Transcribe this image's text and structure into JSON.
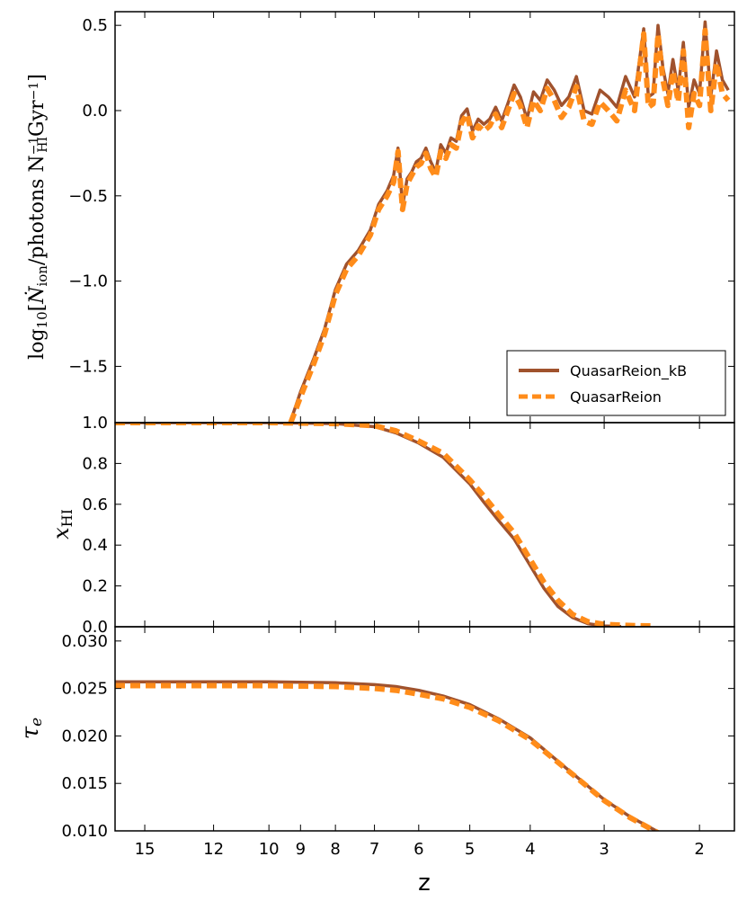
{
  "chart_data": [
    {
      "type": "line",
      "panel": "ionizing-photon-rate",
      "ylabel": "log10[Ṅion/photons NHI⁻¹ Gyr⁻¹]",
      "ylabel_parts": {
        "log": "log",
        "log_sub": "10",
        "open": "[",
        "N": "Ṅ",
        "N_sub": "ion",
        "mid": "/photons N",
        "N2_sup": "−1",
        "N2_sub": "HI",
        "gyr": "Gyr",
        "gyr_sup": "−1",
        "close": "]"
      },
      "ylim": [
        -1.83,
        0.58
      ],
      "yticks": [
        "−1.5",
        "−1.0",
        "−0.5",
        "0.0",
        "0.5"
      ],
      "ytick_values": [
        -1.5,
        -1.0,
        -0.5,
        0.0,
        0.5
      ],
      "legend": [
        "QuasarReion_kB",
        "QuasarReion"
      ],
      "series": [
        {
          "name": "QuasarReion_kB",
          "color": "#a0522d",
          "dash": "solid",
          "x": [
            9.3,
            9.0,
            8.6,
            8.3,
            8.0,
            7.7,
            7.4,
            7.1,
            6.9,
            6.7,
            6.55,
            6.45,
            6.35,
            6.25,
            6.15,
            6.05,
            5.95,
            5.85,
            5.75,
            5.65,
            5.55,
            5.45,
            5.35,
            5.25,
            5.15,
            5.05,
            4.95,
            4.85,
            4.75,
            4.65,
            4.55,
            4.45,
            4.35,
            4.25,
            4.15,
            4.05,
            3.95,
            3.85,
            3.75,
            3.65,
            3.55,
            3.45,
            3.35,
            3.25,
            3.15,
            3.05,
            2.95,
            2.85,
            2.75,
            2.65,
            2.55,
            2.5,
            2.45,
            2.4,
            2.35,
            2.3,
            2.25,
            2.2,
            2.15,
            2.1,
            2.05,
            2.0,
            1.95,
            1.9,
            1.85,
            1.8,
            1.75
          ],
          "y": [
            -1.82,
            -1.65,
            -1.45,
            -1.28,
            -1.05,
            -0.9,
            -0.82,
            -0.7,
            -0.55,
            -0.47,
            -0.38,
            -0.22,
            -0.56,
            -0.4,
            -0.36,
            -0.3,
            -0.28,
            -0.22,
            -0.3,
            -0.36,
            -0.2,
            -0.25,
            -0.16,
            -0.18,
            -0.03,
            0.01,
            -0.12,
            -0.05,
            -0.08,
            -0.05,
            0.02,
            -0.06,
            0.04,
            0.15,
            0.08,
            -0.05,
            0.11,
            0.06,
            0.18,
            0.12,
            0.03,
            0.08,
            0.2,
            0.0,
            -0.02,
            0.12,
            0.08,
            0.02,
            0.2,
            0.08,
            0.48,
            0.08,
            0.1,
            0.5,
            0.25,
            0.1,
            0.3,
            0.12,
            0.4,
            0.02,
            0.18,
            0.1,
            0.52,
            0.08,
            0.35,
            0.18,
            0.12
          ]
        },
        {
          "name": "QuasarReion",
          "color": "#ff8c1a",
          "dash": "dashed",
          "x": [
            9.3,
            9.0,
            8.6,
            8.3,
            8.0,
            7.7,
            7.4,
            7.1,
            6.9,
            6.7,
            6.55,
            6.45,
            6.35,
            6.25,
            6.15,
            6.05,
            5.95,
            5.85,
            5.75,
            5.65,
            5.55,
            5.45,
            5.35,
            5.25,
            5.15,
            5.05,
            4.95,
            4.85,
            4.75,
            4.65,
            4.55,
            4.45,
            4.35,
            4.25,
            4.15,
            4.05,
            3.95,
            3.85,
            3.75,
            3.65,
            3.55,
            3.45,
            3.35,
            3.25,
            3.15,
            3.05,
            2.95,
            2.85,
            2.75,
            2.65,
            2.55,
            2.5,
            2.45,
            2.4,
            2.35,
            2.3,
            2.25,
            2.2,
            2.15,
            2.1,
            2.05,
            2.0,
            1.95,
            1.9,
            1.85,
            1.8,
            1.75
          ],
          "y": [
            -1.83,
            -1.68,
            -1.48,
            -1.31,
            -1.08,
            -0.93,
            -0.85,
            -0.73,
            -0.58,
            -0.5,
            -0.42,
            -0.24,
            -0.58,
            -0.43,
            -0.38,
            -0.33,
            -0.31,
            -0.25,
            -0.34,
            -0.39,
            -0.24,
            -0.28,
            -0.2,
            -0.22,
            -0.07,
            -0.02,
            -0.16,
            -0.09,
            -0.12,
            -0.09,
            -0.02,
            -0.1,
            0.0,
            0.1,
            0.03,
            -0.1,
            0.06,
            0.0,
            0.13,
            0.06,
            -0.04,
            0.02,
            0.14,
            -0.06,
            -0.08,
            0.05,
            0.0,
            -0.06,
            0.12,
            0.0,
            0.45,
            0.02,
            0.04,
            0.45,
            0.18,
            0.03,
            0.23,
            0.05,
            0.35,
            -0.1,
            0.1,
            0.03,
            0.47,
            0.0,
            0.28,
            0.1,
            0.06
          ]
        }
      ]
    },
    {
      "type": "line",
      "panel": "neutral-fraction",
      "ylabel": "xHI",
      "ylabel_parts": {
        "main": "x",
        "sub": "HI"
      },
      "ylim": [
        0.0,
        1.0
      ],
      "yticks": [
        "0.0",
        "0.2",
        "0.4",
        "0.6",
        "0.8",
        "1.0"
      ],
      "ytick_values": [
        0.0,
        0.2,
        0.4,
        0.6,
        0.8,
        1.0
      ],
      "series": [
        {
          "name": "QuasarReion_kB",
          "color": "#a0522d",
          "dash": "solid",
          "x": [
            16.5,
            10.0,
            8.0,
            7.0,
            6.5,
            6.0,
            5.5,
            5.0,
            4.75,
            4.5,
            4.25,
            4.0,
            3.8,
            3.6,
            3.4,
            3.2,
            3.0,
            2.8
          ],
          "y": [
            1.0,
            1.0,
            0.995,
            0.98,
            0.95,
            0.9,
            0.83,
            0.7,
            0.61,
            0.52,
            0.43,
            0.3,
            0.19,
            0.1,
            0.045,
            0.015,
            0.004,
            0.001
          ]
        },
        {
          "name": "QuasarReion",
          "color": "#ff8c1a",
          "dash": "dashed",
          "x": [
            16.5,
            10.0,
            8.0,
            7.0,
            6.5,
            6.0,
            5.5,
            5.0,
            4.75,
            4.5,
            4.25,
            4.0,
            3.8,
            3.6,
            3.4,
            3.2,
            3.0,
            2.8,
            2.6,
            2.45
          ],
          "y": [
            1.0,
            1.0,
            0.995,
            0.985,
            0.96,
            0.91,
            0.85,
            0.72,
            0.64,
            0.55,
            0.46,
            0.33,
            0.22,
            0.13,
            0.06,
            0.025,
            0.012,
            0.008,
            0.005,
            0.004
          ]
        }
      ]
    },
    {
      "type": "line",
      "panel": "optical-depth",
      "ylabel": "τe",
      "ylabel_parts": {
        "main": "τ",
        "sub": "e"
      },
      "xlabel": "z",
      "ylim": [
        0.01,
        0.0315
      ],
      "yticks": [
        "0.010",
        "0.015",
        "0.020",
        "0.025",
        "0.030"
      ],
      "ytick_values": [
        0.01,
        0.015,
        0.02,
        0.025,
        0.03
      ],
      "xticks": [
        "15",
        "12",
        "10",
        "9",
        "8",
        "7",
        "6",
        "5",
        "4",
        "3",
        "2"
      ],
      "xtick_values": [
        15,
        12,
        10,
        9,
        8,
        7,
        6,
        5,
        4,
        3,
        2
      ],
      "xlim": [
        16.5,
        1.7
      ],
      "xscale": "log(1+z)",
      "series": [
        {
          "name": "QuasarReion_kB",
          "color": "#a0522d",
          "dash": "solid",
          "x": [
            16.5,
            12.0,
            10.0,
            8.0,
            7.0,
            6.5,
            6.0,
            5.5,
            5.0,
            4.5,
            4.0,
            3.5,
            3.0,
            2.7,
            2.4
          ],
          "y": [
            0.0257,
            0.0257,
            0.0257,
            0.0256,
            0.0254,
            0.0252,
            0.0248,
            0.0242,
            0.0233,
            0.0218,
            0.0198,
            0.0167,
            0.0133,
            0.0115,
            0.0099
          ]
        },
        {
          "name": "QuasarReion",
          "color": "#ff8c1a",
          "dash": "dashed",
          "x": [
            16.5,
            12.0,
            10.0,
            8.0,
            7.0,
            6.5,
            6.0,
            5.5,
            5.0,
            4.5,
            4.0,
            3.5,
            3.0,
            2.7,
            2.4
          ],
          "y": [
            0.0253,
            0.0253,
            0.0253,
            0.0252,
            0.025,
            0.0248,
            0.0244,
            0.0239,
            0.023,
            0.0216,
            0.0196,
            0.0166,
            0.0132,
            0.0114,
            0.0098
          ]
        }
      ]
    }
  ]
}
